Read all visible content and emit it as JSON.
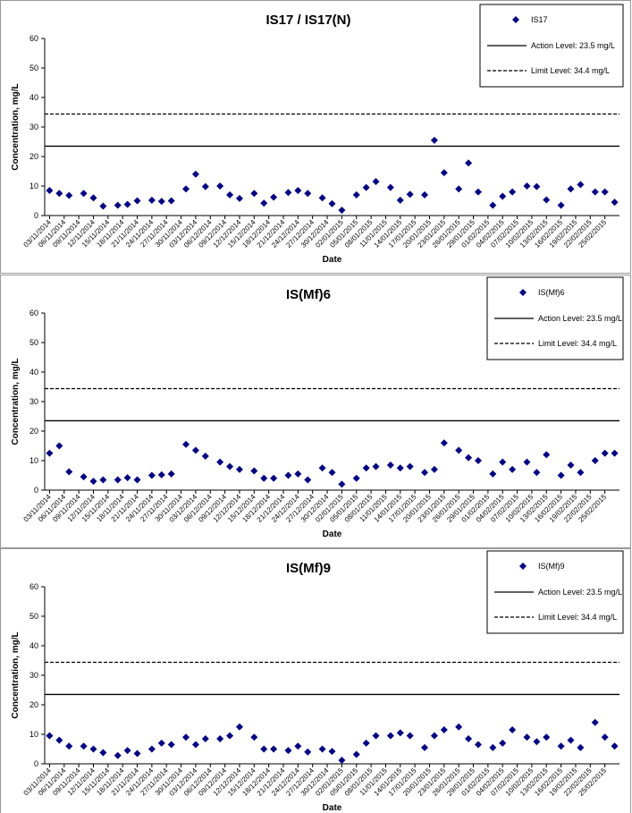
{
  "chart_data": [
    {
      "type": "scatter",
      "title": "IS17 / IS17(N)",
      "x_label": "Date",
      "y_label": "Concentration, mg/L",
      "series": [
        {
          "name": "IS17",
          "color": "#000080",
          "marker": "diamond",
          "x": [
            "03/11/2014",
            "05/11/2014",
            "07/11/2014",
            "10/11/2014",
            "12/11/2014",
            "14/11/2014",
            "17/11/2014",
            "19/11/2014",
            "21/11/2014",
            "24/11/2014",
            "26/11/2014",
            "28/11/2014",
            "01/12/2014",
            "03/12/2014",
            "05/12/2014",
            "08/12/2014",
            "10/12/2014",
            "12/12/2014",
            "15/12/2014",
            "17/12/2014",
            "19/12/2014",
            "22/12/2014",
            "24/12/2014",
            "26/12/2014",
            "29/12/2014",
            "31/12/2014",
            "02/01/2015",
            "05/01/2015",
            "07/01/2015",
            "09/01/2015",
            "12/01/2015",
            "14/01/2015",
            "16/01/2015",
            "19/01/2015",
            "21/01/2015",
            "23/01/2015",
            "26/01/2015",
            "28/01/2015",
            "30/01/2015",
            "02/02/2015",
            "04/02/2015",
            "06/02/2015",
            "09/02/2015",
            "11/02/2015",
            "13/02/2015",
            "16/02/2015",
            "18/02/2015",
            "20/02/2015",
            "23/02/2015",
            "25/02/2015",
            "27/02/2015"
          ],
          "values": [
            8.5,
            7.5,
            6.8,
            7.5,
            6,
            3.2,
            3.5,
            3.8,
            5,
            5.2,
            4.8,
            5,
            9,
            14,
            9.8,
            10,
            7,
            5.8,
            7.5,
            4.2,
            6.2,
            7.8,
            8.5,
            7.5,
            6,
            4,
            1.8,
            7,
            9.5,
            11.5,
            9.5,
            5.2,
            7.2,
            7,
            25.5,
            14.5,
            9,
            17.8,
            8,
            3.5,
            6.5,
            8,
            10,
            9.8,
            5.3,
            3.5,
            9,
            10.5,
            8,
            8,
            4.5
          ]
        }
      ],
      "reference_lines": [
        {
          "name": "Action Level: 23.5 mg/L",
          "value": 23.5,
          "style": "solid"
        },
        {
          "name": "Limit Level: 34.4 mg/L",
          "value": 34.4,
          "style": "dashed"
        }
      ],
      "xlim": [
        "02/11/2014",
        "28/02/2015"
      ],
      "xticks": [
        "03/11/2014",
        "06/11/2014",
        "09/11/2014",
        "12/11/2014",
        "15/11/2014",
        "18/11/2014",
        "21/11/2014",
        "24/11/2014",
        "27/11/2014",
        "30/11/2014",
        "03/12/2014",
        "06/12/2014",
        "09/12/2014",
        "12/12/2014",
        "15/12/2014",
        "18/12/2014",
        "21/12/2014",
        "24/12/2014",
        "27/12/2014",
        "30/12/2014",
        "02/01/2015",
        "05/01/2015",
        "08/01/2015",
        "11/01/2015",
        "14/01/2015",
        "17/01/2015",
        "20/01/2015",
        "23/01/2015",
        "26/01/2015",
        "29/01/2015",
        "01/02/2015",
        "04/02/2015",
        "07/02/2015",
        "10/02/2015",
        "13/02/2015",
        "16/02/2015",
        "19/02/2015",
        "22/02/2015",
        "25/02/2015"
      ],
      "ylim": [
        0,
        60
      ],
      "yticks": [
        0,
        10,
        20,
        30,
        40,
        50,
        60
      ]
    },
    {
      "type": "scatter",
      "title": "IS(Mf)6",
      "x_label": "Date",
      "y_label": "Concentration, mg/L",
      "series": [
        {
          "name": "IS(Mf)6",
          "color": "#000080",
          "marker": "diamond",
          "x": [
            "03/11/2014",
            "05/11/2014",
            "07/11/2014",
            "10/11/2014",
            "12/11/2014",
            "14/11/2014",
            "17/11/2014",
            "19/11/2014",
            "21/11/2014",
            "24/11/2014",
            "26/11/2014",
            "28/11/2014",
            "01/12/2014",
            "03/12/2014",
            "05/12/2014",
            "08/12/2014",
            "10/12/2014",
            "12/12/2014",
            "15/12/2014",
            "17/12/2014",
            "19/12/2014",
            "22/12/2014",
            "24/12/2014",
            "26/12/2014",
            "29/12/2014",
            "31/12/2014",
            "02/01/2015",
            "05/01/2015",
            "07/01/2015",
            "09/01/2015",
            "12/01/2015",
            "14/01/2015",
            "16/01/2015",
            "19/01/2015",
            "21/01/2015",
            "23/01/2015",
            "26/01/2015",
            "28/01/2015",
            "30/01/2015",
            "02/02/2015",
            "04/02/2015",
            "06/02/2015",
            "09/02/2015",
            "11/02/2015",
            "13/02/2015",
            "16/02/2015",
            "18/02/2015",
            "20/02/2015",
            "23/02/2015",
            "25/02/2015",
            "27/02/2015"
          ],
          "values": [
            12.5,
            15,
            6.2,
            4.5,
            3,
            3.5,
            3.5,
            4.2,
            3.5,
            5,
            5.2,
            5.5,
            15.5,
            13.5,
            11.5,
            9.5,
            8,
            7,
            6.5,
            4,
            4,
            5,
            5.5,
            3.5,
            7.5,
            6,
            2,
            4,
            7.5,
            8,
            8.5,
            7.5,
            8,
            6,
            7,
            16,
            13.5,
            11,
            10,
            5.5,
            9.5,
            7,
            9.5,
            6,
            12,
            5,
            8.5,
            6,
            10,
            12.5,
            12.5
          ]
        }
      ],
      "reference_lines": [
        {
          "name": "Action Level: 23.5 mg/L",
          "value": 23.5,
          "style": "solid"
        },
        {
          "name": "Limit Level: 34.4 mg/L",
          "value": 34.4,
          "style": "dashed"
        }
      ],
      "xlim": [
        "02/11/2014",
        "28/02/2015"
      ],
      "xticks": [
        "03/11/2014",
        "06/11/2014",
        "09/11/2014",
        "12/11/2014",
        "15/11/2014",
        "18/11/2014",
        "21/11/2014",
        "24/11/2014",
        "27/11/2014",
        "30/11/2014",
        "03/12/2014",
        "06/12/2014",
        "09/12/2014",
        "12/12/2014",
        "15/12/2014",
        "18/12/2014",
        "21/12/2014",
        "24/12/2014",
        "27/12/2014",
        "30/12/2014",
        "02/01/2015",
        "05/01/2015",
        "08/01/2015",
        "11/01/2015",
        "14/01/2015",
        "17/01/2015",
        "20/01/2015",
        "23/01/2015",
        "26/01/2015",
        "29/01/2015",
        "01/02/2015",
        "04/02/2015",
        "07/02/2015",
        "10/02/2015",
        "13/02/2015",
        "16/02/2015",
        "19/02/2015",
        "22/02/2015",
        "25/02/2015"
      ],
      "ylim": [
        0,
        60
      ],
      "yticks": [
        0,
        10,
        20,
        30,
        40,
        50,
        60
      ]
    },
    {
      "type": "scatter",
      "title": "IS(Mf)9",
      "x_label": "Date",
      "y_label": "Concentration, mg/L",
      "series": [
        {
          "name": "IS(Mf)9",
          "color": "#000080",
          "marker": "diamond",
          "x": [
            "03/11/2014",
            "05/11/2014",
            "07/11/2014",
            "10/11/2014",
            "12/11/2014",
            "14/11/2014",
            "17/11/2014",
            "19/11/2014",
            "21/11/2014",
            "24/11/2014",
            "26/11/2014",
            "28/11/2014",
            "01/12/2014",
            "03/12/2014",
            "05/12/2014",
            "08/12/2014",
            "10/12/2014",
            "12/12/2014",
            "15/12/2014",
            "17/12/2014",
            "19/12/2014",
            "22/12/2014",
            "24/12/2014",
            "26/12/2014",
            "29/12/2014",
            "31/12/2014",
            "02/01/2015",
            "05/01/2015",
            "07/01/2015",
            "09/01/2015",
            "12/01/2015",
            "14/01/2015",
            "16/01/2015",
            "19/01/2015",
            "21/01/2015",
            "23/01/2015",
            "26/01/2015",
            "28/01/2015",
            "30/01/2015",
            "02/02/2015",
            "04/02/2015",
            "06/02/2015",
            "09/02/2015",
            "11/02/2015",
            "13/02/2015",
            "16/02/2015",
            "18/02/2015",
            "20/02/2015",
            "23/02/2015",
            "25/02/2015",
            "27/02/2015"
          ],
          "values": [
            9.5,
            8,
            6,
            6,
            5,
            3.8,
            2.8,
            4.5,
            3.5,
            5,
            7,
            6.5,
            9,
            6.5,
            8.5,
            8.5,
            9.5,
            12.5,
            9,
            5,
            5,
            4.5,
            6,
            4,
            5,
            4.2,
            1.2,
            3.2,
            7,
            9.5,
            9.5,
            10.5,
            9.5,
            5.5,
            9.5,
            11.5,
            12.5,
            8.5,
            6.5,
            5.5,
            7,
            11.5,
            9,
            7.5,
            9,
            6,
            8,
            5.5,
            14,
            9,
            6
          ]
        }
      ],
      "reference_lines": [
        {
          "name": "Action Level: 23.5 mg/L",
          "value": 23.5,
          "style": "solid"
        },
        {
          "name": "Limit Level: 34.4 mg/L",
          "value": 34.4,
          "style": "dashed"
        }
      ],
      "xlim": [
        "02/11/2014",
        "28/02/2015"
      ],
      "xticks": [
        "03/11/2014",
        "06/11/2014",
        "09/11/2014",
        "12/11/2014",
        "15/11/2014",
        "18/11/2014",
        "21/11/2014",
        "24/11/2014",
        "27/11/2014",
        "30/11/2014",
        "03/12/2014",
        "06/12/2014",
        "09/12/2014",
        "12/12/2014",
        "15/12/2014",
        "18/12/2014",
        "21/12/2014",
        "24/12/2014",
        "27/12/2014",
        "30/12/2014",
        "02/01/2015",
        "05/01/2015",
        "08/01/2015",
        "11/01/2015",
        "14/01/2015",
        "17/01/2015",
        "20/01/2015",
        "23/01/2015",
        "26/01/2015",
        "29/01/2015",
        "01/02/2015",
        "04/02/2015",
        "07/02/2015",
        "10/02/2015",
        "13/02/2015",
        "16/02/2015",
        "19/02/2015",
        "22/02/2015",
        "25/02/2015"
      ],
      "ylim": [
        0,
        60
      ],
      "yticks": [
        0,
        10,
        20,
        30,
        40,
        50,
        60
      ]
    }
  ]
}
